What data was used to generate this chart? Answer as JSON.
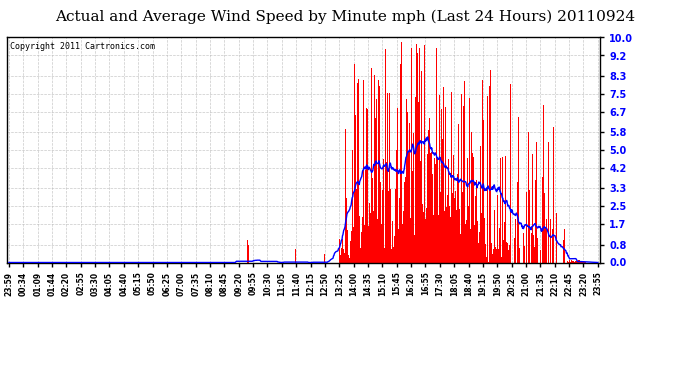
{
  "title": "Actual and Average Wind Speed by Minute mph (Last 24 Hours) 20110924",
  "copyright": "Copyright 2011 Cartronics.com",
  "yticks": [
    0.0,
    0.8,
    1.7,
    2.5,
    3.3,
    4.2,
    5.0,
    5.8,
    6.7,
    7.5,
    8.3,
    9.2,
    10.0
  ],
  "ylim": [
    0.0,
    10.0
  ],
  "bar_color": "#ff0000",
  "line_color": "#0000ff",
  "bg_color": "#ffffff",
  "grid_color": "#bbbbbb",
  "title_fontsize": 11,
  "copyright_fontsize": 6,
  "xtick_fontsize": 5.5,
  "ytick_fontsize": 7,
  "xtick_labels": [
    "23:59",
    "00:34",
    "01:09",
    "01:44",
    "02:20",
    "02:55",
    "03:30",
    "04:05",
    "04:40",
    "05:15",
    "05:50",
    "06:25",
    "07:00",
    "07:35",
    "08:10",
    "08:45",
    "09:20",
    "09:55",
    "10:30",
    "11:05",
    "11:40",
    "12:15",
    "12:50",
    "13:25",
    "14:00",
    "14:35",
    "15:10",
    "15:45",
    "16:20",
    "16:55",
    "17:30",
    "18:05",
    "18:40",
    "19:15",
    "19:50",
    "20:25",
    "21:00",
    "21:35",
    "22:10",
    "22:45",
    "23:20",
    "23:55"
  ]
}
